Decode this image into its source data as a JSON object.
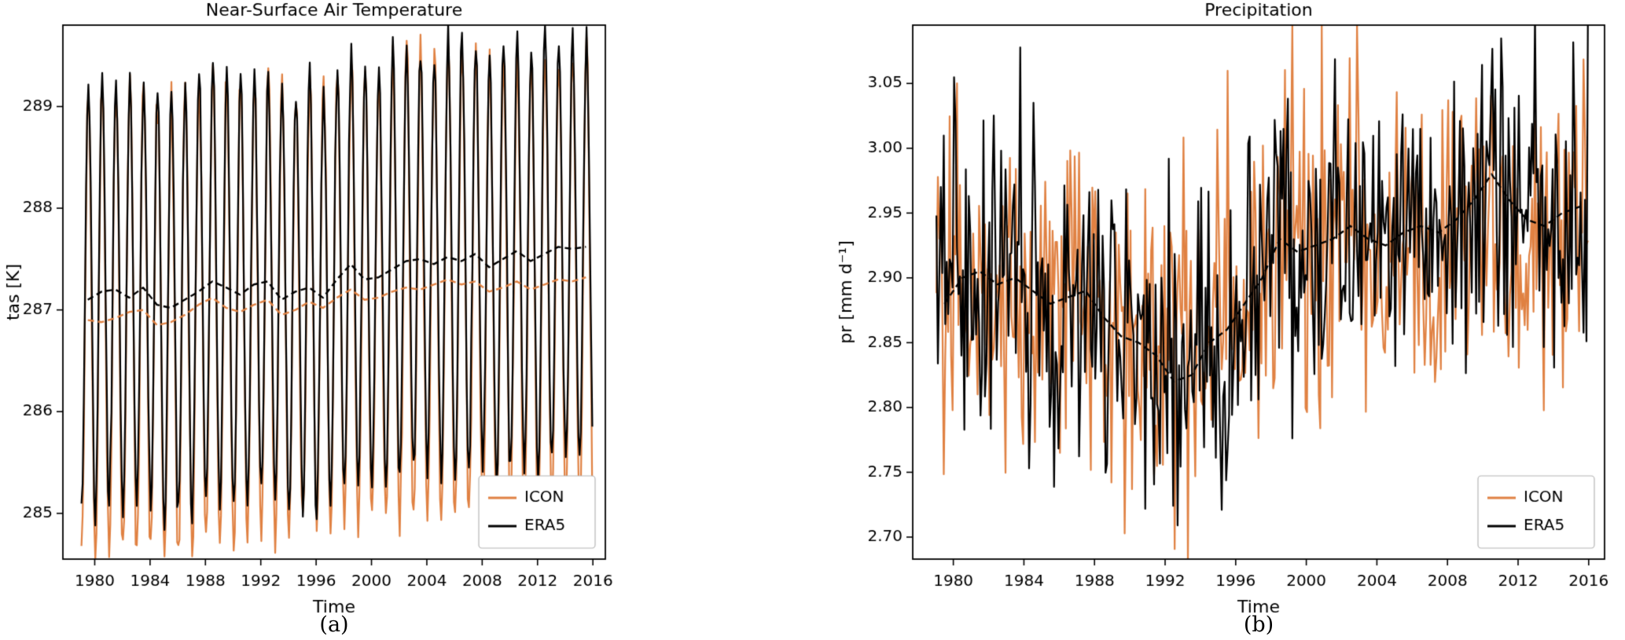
{
  "figure": {
    "captions": {
      "a": "(a)",
      "b": "(b)"
    }
  },
  "colors": {
    "icon": "#E08142",
    "era5": "#000000",
    "legend_border": "#b5b5b5",
    "background": "#ffffff"
  },
  "chart_data": [
    {
      "id": "tas",
      "type": "line",
      "title": "Near-Surface Air Temperature",
      "xlabel": "Time",
      "ylabel": "tas [K]",
      "xlim": [
        1977.7,
        2016.9
      ],
      "ylim": [
        284.55,
        289.8
      ],
      "xticks": [
        1980,
        1984,
        1988,
        1992,
        1996,
        2000,
        2004,
        2008,
        2012,
        2016
      ],
      "xticklabels": [
        "1980",
        "1984",
        "1988",
        "1992",
        "1996",
        "2000",
        "2004",
        "2008",
        "2012",
        "2016"
      ],
      "yticks": [
        285,
        286,
        287,
        288,
        289
      ],
      "yticklabels": [
        "285",
        "286",
        "287",
        "288",
        "289"
      ],
      "grid": false,
      "year_start": 1979,
      "year_end": 2015,
      "legend": {
        "position": "lower right",
        "entries": [
          {
            "label": "ICON",
            "color": "#E08142"
          },
          {
            "label": "ERA5",
            "color": "#000000"
          }
        ]
      },
      "series": [
        {
          "name": "ICON monthly",
          "kind": "monthly",
          "style": "solid",
          "color": "#E08142",
          "amplitude": 2.28,
          "amp_jitter": 0.05,
          "noise": 0.11,
          "seed": 11,
          "annual_mean": [
            286.9,
            286.88,
            286.92,
            286.98,
            287.0,
            286.85,
            286.88,
            286.95,
            287.05,
            287.12,
            287.02,
            286.98,
            287.05,
            287.1,
            286.95,
            287.0,
            287.08,
            287.02,
            287.12,
            287.2,
            287.1,
            287.12,
            287.18,
            287.22,
            287.2,
            287.25,
            287.3,
            287.25,
            287.28,
            287.18,
            287.22,
            287.28,
            287.2,
            287.25,
            287.3,
            287.28,
            287.32
          ]
        },
        {
          "name": "ERA5 monthly",
          "kind": "monthly",
          "style": "solid",
          "color": "#000000",
          "amplitude": 2.1,
          "amp_jitter": 0.05,
          "noise": 0.08,
          "seed": 5,
          "annual_mean": [
            287.1,
            287.18,
            287.2,
            287.12,
            287.22,
            287.05,
            287.02,
            287.1,
            287.18,
            287.28,
            287.22,
            287.15,
            287.25,
            287.28,
            287.1,
            287.18,
            287.22,
            287.12,
            287.3,
            287.45,
            287.3,
            287.32,
            287.4,
            287.48,
            287.5,
            287.45,
            287.52,
            287.48,
            287.55,
            287.42,
            287.5,
            287.58,
            287.48,
            287.55,
            287.62,
            287.6,
            287.62
          ]
        },
        {
          "name": "ICON annual running mean",
          "kind": "annual",
          "style": "dashed",
          "color": "#E08142",
          "annual_mean": [
            286.9,
            286.88,
            286.92,
            286.98,
            287.0,
            286.85,
            286.88,
            286.95,
            287.05,
            287.12,
            287.02,
            286.98,
            287.05,
            287.1,
            286.95,
            287.0,
            287.08,
            287.02,
            287.12,
            287.2,
            287.1,
            287.12,
            287.18,
            287.22,
            287.2,
            287.25,
            287.3,
            287.25,
            287.28,
            287.18,
            287.22,
            287.28,
            287.2,
            287.25,
            287.3,
            287.28,
            287.32
          ]
        },
        {
          "name": "ERA5 annual running mean",
          "kind": "annual",
          "style": "dashed",
          "color": "#000000",
          "annual_mean": [
            287.1,
            287.18,
            287.2,
            287.12,
            287.22,
            287.05,
            287.02,
            287.1,
            287.18,
            287.28,
            287.22,
            287.15,
            287.25,
            287.28,
            287.1,
            287.18,
            287.22,
            287.12,
            287.3,
            287.45,
            287.3,
            287.32,
            287.4,
            287.48,
            287.5,
            287.45,
            287.52,
            287.48,
            287.55,
            287.42,
            287.5,
            287.58,
            287.48,
            287.55,
            287.62,
            287.6,
            287.62
          ]
        }
      ]
    },
    {
      "id": "pr",
      "type": "line",
      "title": "Precipitation",
      "xlabel": "Time",
      "ylabel": "pr [mm d⁻¹]",
      "xlim": [
        1977.7,
        2016.9
      ],
      "ylim": [
        2.683,
        3.095
      ],
      "xticks": [
        1980,
        1984,
        1988,
        1992,
        1996,
        2000,
        2004,
        2008,
        2012,
        2016
      ],
      "xticklabels": [
        "1980",
        "1984",
        "1988",
        "1992",
        "1996",
        "2000",
        "2004",
        "2008",
        "2012",
        "2016"
      ],
      "yticks": [
        2.7,
        2.75,
        2.8,
        2.85,
        2.9,
        2.95,
        3.0,
        3.05
      ],
      "yticklabels": [
        "2.70",
        "2.75",
        "2.80",
        "2.85",
        "2.90",
        "2.95",
        "3.00",
        "3.05"
      ],
      "grid": false,
      "year_start": 1979,
      "year_end": 2015,
      "legend": {
        "position": "lower right",
        "entries": [
          {
            "label": "ICON",
            "color": "#E08142"
          },
          {
            "label": "ERA5",
            "color": "#000000"
          }
        ]
      },
      "series": [
        {
          "name": "ICON monthly",
          "kind": "monthly",
          "style": "solid",
          "color": "#E08142",
          "amplitude": 0,
          "noise": 0.066,
          "seed": 23,
          "annual_mean": [
            2.895,
            2.905,
            2.89,
            2.885,
            2.895,
            2.885,
            2.89,
            2.88,
            2.895,
            2.875,
            2.865,
            2.855,
            2.845,
            2.835,
            2.84,
            2.855,
            2.87,
            2.885,
            2.905,
            2.92,
            2.915,
            2.92,
            2.925,
            2.935,
            2.925,
            2.93,
            2.93,
            2.935,
            2.93,
            2.94,
            2.95,
            2.965,
            2.95,
            2.94,
            2.935,
            2.945,
            2.95
          ]
        },
        {
          "name": "ERA5 monthly",
          "kind": "monthly",
          "style": "solid",
          "color": "#000000",
          "amplitude": 0,
          "noise": 0.06,
          "seed": 3,
          "annual_mean": [
            2.88,
            2.9,
            2.905,
            2.895,
            2.9,
            2.89,
            2.88,
            2.885,
            2.89,
            2.87,
            2.855,
            2.85,
            2.84,
            2.82,
            2.825,
            2.85,
            2.86,
            2.88,
            2.9,
            2.93,
            2.92,
            2.925,
            2.93,
            2.94,
            2.93,
            2.925,
            2.935,
            2.94,
            2.935,
            2.945,
            2.96,
            2.98,
            2.96,
            2.945,
            2.94,
            2.95,
            2.955
          ]
        },
        {
          "name": "ERA5 annual running mean",
          "kind": "annual",
          "style": "dashed",
          "color": "#000000",
          "annual_mean": [
            2.88,
            2.9,
            2.905,
            2.895,
            2.9,
            2.89,
            2.88,
            2.885,
            2.89,
            2.87,
            2.855,
            2.85,
            2.84,
            2.82,
            2.825,
            2.85,
            2.86,
            2.88,
            2.9,
            2.93,
            2.92,
            2.925,
            2.93,
            2.94,
            2.93,
            2.925,
            2.935,
            2.94,
            2.935,
            2.945,
            2.96,
            2.98,
            2.96,
            2.945,
            2.94,
            2.95,
            2.955
          ]
        }
      ]
    }
  ]
}
